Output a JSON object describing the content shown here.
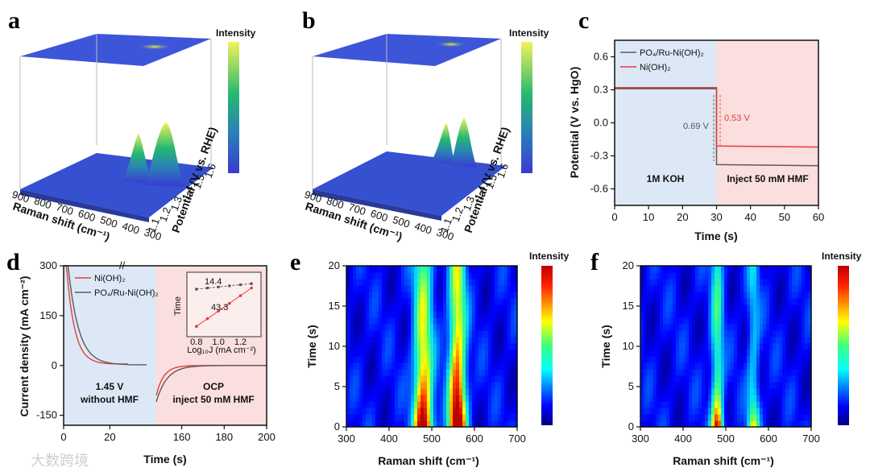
{
  "watermark": "大数跨境",
  "colors": {
    "red": "#e0403a",
    "gray": "#5a5a5a",
    "blueBg": "#dde8f7",
    "redBg": "#fbdede",
    "dashRed": "#e05050"
  },
  "chart_data": [
    {
      "panel": "a",
      "type": "surface3d",
      "xlabel": "Raman shift (cm⁻¹)",
      "ylabel": "Potential (V vs. RHE)",
      "xticks": [
        "900",
        "800",
        "700",
        "600",
        "500",
        "400",
        "300"
      ],
      "yticks": [
        "1.1",
        "1.2",
        "1.3",
        "1.4",
        "1.5",
        "1.6"
      ],
      "colorbar_label": "Intensity",
      "peaks": [
        {
          "x": 480,
          "height": 0.75
        },
        {
          "x": 555,
          "height": 0.85
        }
      ]
    },
    {
      "panel": "b",
      "type": "surface3d",
      "xlabel": "Raman shift (cm⁻¹)",
      "ylabel": "Potential (V vs. RHE)",
      "xticks": [
        "900",
        "800",
        "700",
        "600",
        "500",
        "400",
        "300"
      ],
      "yticks": [
        "1.1",
        "1.2",
        "1.3",
        "1.4",
        "1.5",
        "1.6"
      ],
      "colorbar_label": "Intensity",
      "peaks": [
        {
          "x": 480,
          "height": 0.45
        },
        {
          "x": 555,
          "height": 0.6
        }
      ]
    },
    {
      "panel": "c",
      "type": "line",
      "xlabel": "Time (s)",
      "ylabel": "Potential (V vs. HgO)",
      "xlim": [
        0,
        60
      ],
      "ylim": [
        -0.75,
        0.75
      ],
      "xticks": [
        0,
        10,
        20,
        30,
        40,
        50,
        60
      ],
      "yticks": [
        0.6,
        0.3,
        0.0,
        -0.3,
        -0.6
      ],
      "series": [
        {
          "name": "PO₄/Ru-Ni(OH)₂",
          "color": "#5a5a5a",
          "x": [
            0,
            30,
            30.001,
            60
          ],
          "y": [
            0.31,
            0.31,
            -0.38,
            -0.39
          ]
        },
        {
          "name": "Ni(OH)₂",
          "color": "#e0403a",
          "x": [
            0,
            30,
            30.001,
            60
          ],
          "y": [
            0.32,
            0.32,
            -0.21,
            -0.22
          ]
        }
      ],
      "regions": [
        {
          "from": 0,
          "to": 30,
          "label": "1M KOH"
        },
        {
          "from": 30,
          "to": 60,
          "label": "Inject 50 mM HMF"
        }
      ],
      "annotations": [
        "0.69 V",
        "0.53 V"
      ]
    },
    {
      "panel": "d",
      "type": "line",
      "xlabel": "Time (s)",
      "ylabel": "Current density (mA cm⁻²)",
      "xlim": [
        0,
        200
      ],
      "ylim": [
        -180,
        300
      ],
      "xticks": [
        0,
        20,
        160,
        180,
        200
      ],
      "yticks": [
        300,
        150,
        0,
        -150
      ],
      "axis_break": [
        30,
        148
      ],
      "series": [
        {
          "name": "Ni(OH)₂",
          "color": "#e0403a"
        },
        {
          "name": "PO₄/Ru-Ni(OH)₂",
          "color": "#5a5a5a"
        }
      ],
      "regions": [
        {
          "label_line1": "1.45 V",
          "label_line2": "without HMF"
        },
        {
          "label_line1": "OCP",
          "label_line2": "inject 50 mM HMF"
        }
      ],
      "inset": {
        "ylabel": "Time",
        "xlabel": "Log₁₀J (mA cm⁻²)",
        "xticks": [
          "0.8",
          "1.0",
          "1.2"
        ],
        "series": [
          {
            "color": "#5a5a5a",
            "slope_label": "14.4",
            "x": [
              0.8,
              0.9,
              1.0,
              1.1,
              1.2,
              1.3
            ],
            "y": [
              0.78,
              0.8,
              0.82,
              0.84,
              0.86,
              0.88
            ]
          },
          {
            "color": "#e0403a",
            "slope_label": "43.3",
            "x": [
              0.8,
              0.9,
              1.0,
              1.1,
              1.2,
              1.3
            ],
            "y": [
              0.1,
              0.24,
              0.38,
              0.52,
              0.66,
              0.8
            ]
          }
        ]
      }
    },
    {
      "panel": "e",
      "type": "heatmap",
      "xlabel": "Raman shift (cm⁻¹)",
      "ylabel": "Time (s)",
      "xlim": [
        300,
        700
      ],
      "ylim": [
        0,
        20
      ],
      "xticks": [
        300,
        400,
        500,
        600,
        700
      ],
      "yticks": [
        0,
        5,
        10,
        15,
        20
      ],
      "colorbar_label": "Intensity",
      "peaks": [
        {
          "x": 480,
          "width": 22,
          "strength": 1.0,
          "decay": 8
        },
        {
          "x": 560,
          "width": 20,
          "strength": 1.1,
          "decay": 9
        }
      ]
    },
    {
      "panel": "f",
      "type": "heatmap",
      "xlabel": "Raman shift (cm⁻¹)",
      "ylabel": "Time (s)",
      "xlim": [
        300,
        700
      ],
      "ylim": [
        0,
        20
      ],
      "xticks": [
        300,
        400,
        500,
        600,
        700
      ],
      "yticks": [
        0,
        5,
        10,
        15,
        20
      ],
      "colorbar_label": "Intensity",
      "peaks": [
        {
          "x": 480,
          "width": 14,
          "strength": 0.9,
          "decay": 3
        },
        {
          "x": 565,
          "width": 14,
          "strength": 0.55,
          "decay": 3
        }
      ]
    }
  ]
}
